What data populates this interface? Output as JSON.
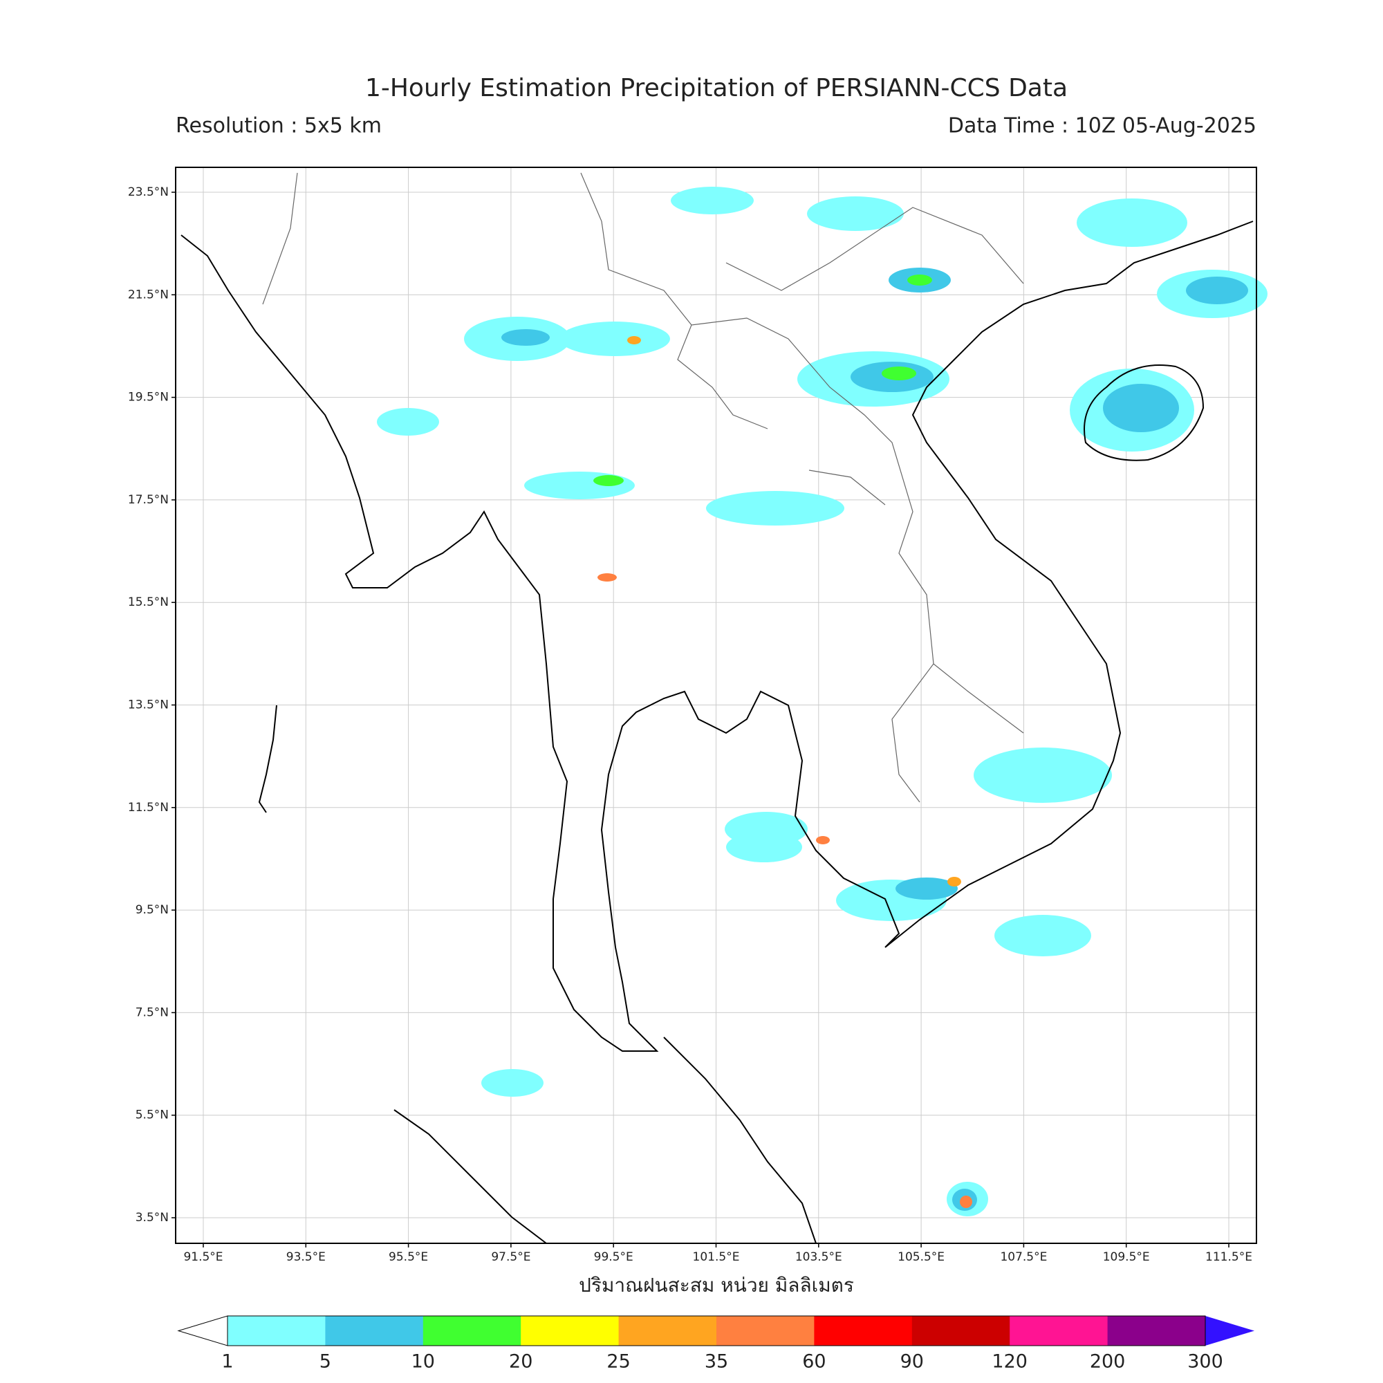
{
  "title": "1-Hourly Estimation Precipitation of PERSIANN-CCS Data",
  "resolution": "Resolution : 5x5 km",
  "data_time": "Data Time : 10Z 05-Aug-2025",
  "map": {
    "lon_ticks": [
      "91.5°E",
      "93.5°E",
      "95.5°E",
      "97.5°E",
      "99.5°E",
      "101.5°E",
      "103.5°E",
      "105.5°E",
      "107.5°E",
      "109.5°E",
      "111.5°E"
    ],
    "lat_ticks": [
      "23.5°N",
      "21.5°N",
      "19.5°N",
      "17.5°N",
      "15.5°N",
      "13.5°N",
      "11.5°N",
      "9.5°N",
      "7.5°N",
      "5.5°N",
      "3.5°N"
    ]
  },
  "colorbar": {
    "label": "ปริมาณฝนสะสม หน่วย มิลลิเมตร",
    "levels": [
      1,
      5,
      10,
      20,
      25,
      35,
      60,
      90,
      120,
      200,
      300
    ],
    "colors": [
      "#80ffff",
      "#40c8e8",
      "#40ff30",
      "#ffff00",
      "#ffa520",
      "#ff8040",
      "#ff0000",
      "#cc0000",
      "#ff1493",
      "#8b008b"
    ],
    "under_color": "#ffffff",
    "over_color": "#3311ff"
  }
}
